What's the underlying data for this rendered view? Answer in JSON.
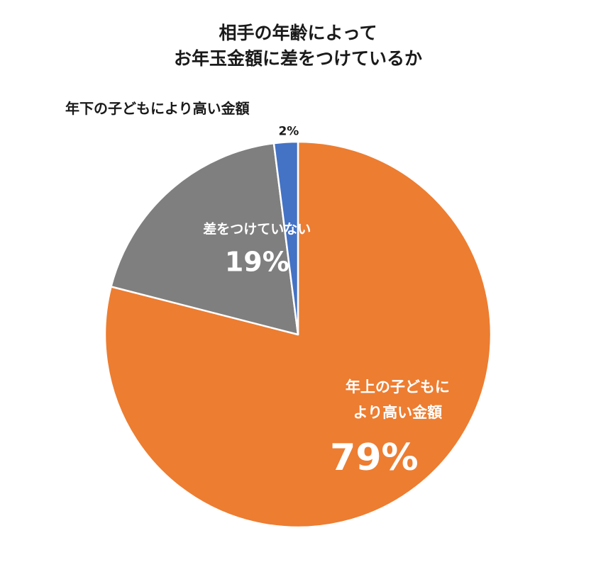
{
  "chart_data": {
    "type": "pie",
    "title": "相手の年齢によって お年玉金額に差をつけているか",
    "title_lines": [
      "相手の年齢によって",
      "お年玉金額に差をつけているか"
    ],
    "categories": [
      "年上の子どもにより高い金額",
      "差をつけていない",
      "年下の子どもにより高い金額"
    ],
    "values": [
      79,
      19,
      2
    ],
    "unit": "%",
    "colors": [
      "#ed7d31",
      "#7f7f7f",
      "#4472c4"
    ],
    "slices": [
      {
        "label": "年上の子どもにより高い金額",
        "label_lines": [
          "年上の子どもに",
          "より高い金額"
        ],
        "value": 79,
        "value_text": "79%",
        "color": "#ed7d31",
        "label_placement": "inside"
      },
      {
        "label": "差をつけていない",
        "label_lines": [
          "差をつけていない"
        ],
        "value": 19,
        "value_text": "19%",
        "color": "#7f7f7f",
        "label_placement": "inside"
      },
      {
        "label": "年下の子どもにより高い金額",
        "label_lines": [
          "年下の子どもにより高い金額"
        ],
        "value": 2,
        "value_text": "2%",
        "color": "#4472c4",
        "label_placement": "outside"
      }
    ],
    "start_angle_deg": 0,
    "direction": "clockwise",
    "legend": "none"
  }
}
